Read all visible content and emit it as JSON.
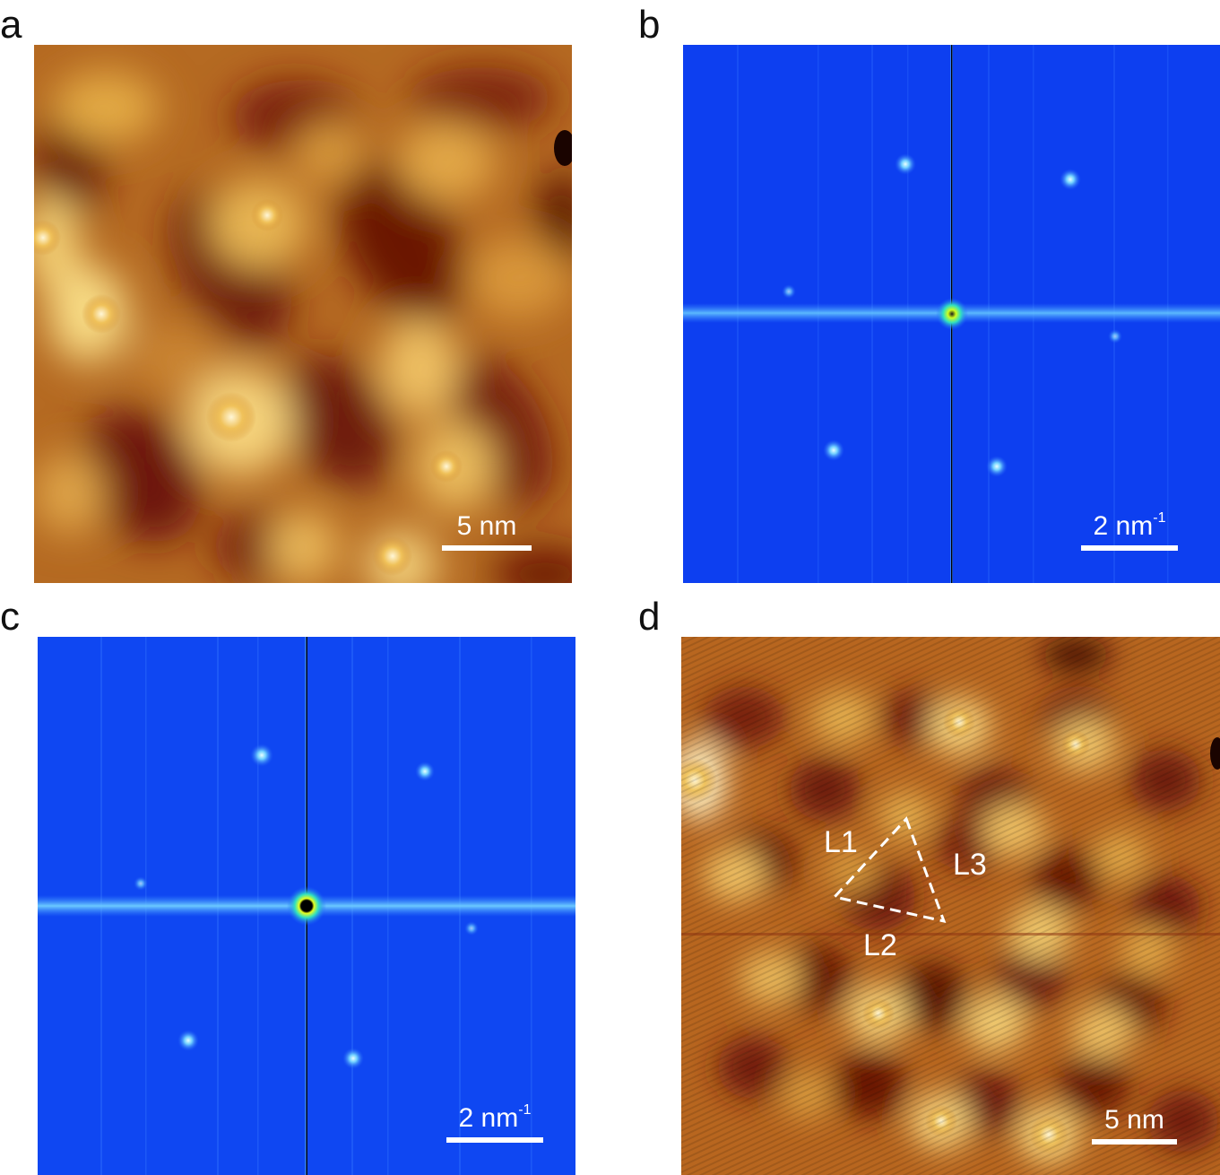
{
  "panels": {
    "a": {
      "letter": "a",
      "scalebar": "5 nm"
    },
    "b": {
      "letter": "b",
      "scalebar_num": "2 nm",
      "scalebar_sup": "-1"
    },
    "c": {
      "letter": "c",
      "scalebar_num": "2 nm",
      "scalebar_sup": "-1"
    },
    "d": {
      "letter": "d",
      "scalebar": "5 nm",
      "labels": {
        "l1": "L1",
        "l2": "L2",
        "l3": "L3"
      }
    }
  },
  "colors": {
    "afm_dark": "#6e1a08",
    "afm_mid": "#b9651c",
    "afm_bright": "#fff2c0",
    "fft_background": "#0c3ef0",
    "fft_spot": "#7ad8ff"
  }
}
